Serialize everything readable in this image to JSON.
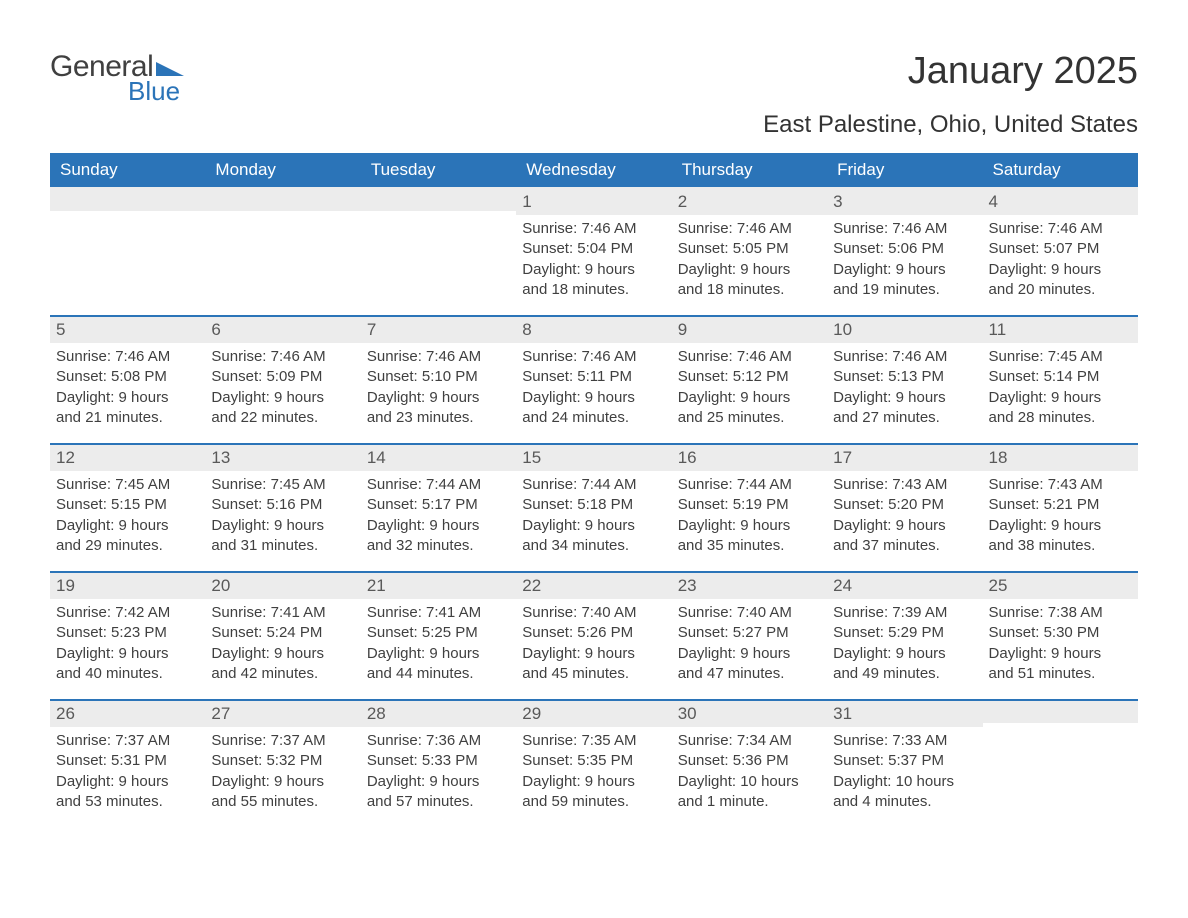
{
  "logo": {
    "word1": "General",
    "word2": "Blue",
    "brand_color": "#2b74b8"
  },
  "title": "January 2025",
  "location": "East Palestine, Ohio, United States",
  "days_of_week": [
    "Sunday",
    "Monday",
    "Tuesday",
    "Wednesday",
    "Thursday",
    "Friday",
    "Saturday"
  ],
  "colors": {
    "header_bg": "#2b74b8",
    "header_text": "#ffffff",
    "daynum_bg": "#ececec",
    "daynum_text": "#595959",
    "body_text": "#404040",
    "rule": "#2b74b8"
  },
  "typography": {
    "title_fontsize": 38,
    "location_fontsize": 24,
    "dow_fontsize": 17,
    "daynum_fontsize": 17,
    "body_fontsize": 15
  },
  "weeks": [
    [
      null,
      null,
      null,
      {
        "n": "1",
        "sunrise": "Sunrise: 7:46 AM",
        "sunset": "Sunset: 5:04 PM",
        "d1": "Daylight: 9 hours",
        "d2": "and 18 minutes."
      },
      {
        "n": "2",
        "sunrise": "Sunrise: 7:46 AM",
        "sunset": "Sunset: 5:05 PM",
        "d1": "Daylight: 9 hours",
        "d2": "and 18 minutes."
      },
      {
        "n": "3",
        "sunrise": "Sunrise: 7:46 AM",
        "sunset": "Sunset: 5:06 PM",
        "d1": "Daylight: 9 hours",
        "d2": "and 19 minutes."
      },
      {
        "n": "4",
        "sunrise": "Sunrise: 7:46 AM",
        "sunset": "Sunset: 5:07 PM",
        "d1": "Daylight: 9 hours",
        "d2": "and 20 minutes."
      }
    ],
    [
      {
        "n": "5",
        "sunrise": "Sunrise: 7:46 AM",
        "sunset": "Sunset: 5:08 PM",
        "d1": "Daylight: 9 hours",
        "d2": "and 21 minutes."
      },
      {
        "n": "6",
        "sunrise": "Sunrise: 7:46 AM",
        "sunset": "Sunset: 5:09 PM",
        "d1": "Daylight: 9 hours",
        "d2": "and 22 minutes."
      },
      {
        "n": "7",
        "sunrise": "Sunrise: 7:46 AM",
        "sunset": "Sunset: 5:10 PM",
        "d1": "Daylight: 9 hours",
        "d2": "and 23 minutes."
      },
      {
        "n": "8",
        "sunrise": "Sunrise: 7:46 AM",
        "sunset": "Sunset: 5:11 PM",
        "d1": "Daylight: 9 hours",
        "d2": "and 24 minutes."
      },
      {
        "n": "9",
        "sunrise": "Sunrise: 7:46 AM",
        "sunset": "Sunset: 5:12 PM",
        "d1": "Daylight: 9 hours",
        "d2": "and 25 minutes."
      },
      {
        "n": "10",
        "sunrise": "Sunrise: 7:46 AM",
        "sunset": "Sunset: 5:13 PM",
        "d1": "Daylight: 9 hours",
        "d2": "and 27 minutes."
      },
      {
        "n": "11",
        "sunrise": "Sunrise: 7:45 AM",
        "sunset": "Sunset: 5:14 PM",
        "d1": "Daylight: 9 hours",
        "d2": "and 28 minutes."
      }
    ],
    [
      {
        "n": "12",
        "sunrise": "Sunrise: 7:45 AM",
        "sunset": "Sunset: 5:15 PM",
        "d1": "Daylight: 9 hours",
        "d2": "and 29 minutes."
      },
      {
        "n": "13",
        "sunrise": "Sunrise: 7:45 AM",
        "sunset": "Sunset: 5:16 PM",
        "d1": "Daylight: 9 hours",
        "d2": "and 31 minutes."
      },
      {
        "n": "14",
        "sunrise": "Sunrise: 7:44 AM",
        "sunset": "Sunset: 5:17 PM",
        "d1": "Daylight: 9 hours",
        "d2": "and 32 minutes."
      },
      {
        "n": "15",
        "sunrise": "Sunrise: 7:44 AM",
        "sunset": "Sunset: 5:18 PM",
        "d1": "Daylight: 9 hours",
        "d2": "and 34 minutes."
      },
      {
        "n": "16",
        "sunrise": "Sunrise: 7:44 AM",
        "sunset": "Sunset: 5:19 PM",
        "d1": "Daylight: 9 hours",
        "d2": "and 35 minutes."
      },
      {
        "n": "17",
        "sunrise": "Sunrise: 7:43 AM",
        "sunset": "Sunset: 5:20 PM",
        "d1": "Daylight: 9 hours",
        "d2": "and 37 minutes."
      },
      {
        "n": "18",
        "sunrise": "Sunrise: 7:43 AM",
        "sunset": "Sunset: 5:21 PM",
        "d1": "Daylight: 9 hours",
        "d2": "and 38 minutes."
      }
    ],
    [
      {
        "n": "19",
        "sunrise": "Sunrise: 7:42 AM",
        "sunset": "Sunset: 5:23 PM",
        "d1": "Daylight: 9 hours",
        "d2": "and 40 minutes."
      },
      {
        "n": "20",
        "sunrise": "Sunrise: 7:41 AM",
        "sunset": "Sunset: 5:24 PM",
        "d1": "Daylight: 9 hours",
        "d2": "and 42 minutes."
      },
      {
        "n": "21",
        "sunrise": "Sunrise: 7:41 AM",
        "sunset": "Sunset: 5:25 PM",
        "d1": "Daylight: 9 hours",
        "d2": "and 44 minutes."
      },
      {
        "n": "22",
        "sunrise": "Sunrise: 7:40 AM",
        "sunset": "Sunset: 5:26 PM",
        "d1": "Daylight: 9 hours",
        "d2": "and 45 minutes."
      },
      {
        "n": "23",
        "sunrise": "Sunrise: 7:40 AM",
        "sunset": "Sunset: 5:27 PM",
        "d1": "Daylight: 9 hours",
        "d2": "and 47 minutes."
      },
      {
        "n": "24",
        "sunrise": "Sunrise: 7:39 AM",
        "sunset": "Sunset: 5:29 PM",
        "d1": "Daylight: 9 hours",
        "d2": "and 49 minutes."
      },
      {
        "n": "25",
        "sunrise": "Sunrise: 7:38 AM",
        "sunset": "Sunset: 5:30 PM",
        "d1": "Daylight: 9 hours",
        "d2": "and 51 minutes."
      }
    ],
    [
      {
        "n": "26",
        "sunrise": "Sunrise: 7:37 AM",
        "sunset": "Sunset: 5:31 PM",
        "d1": "Daylight: 9 hours",
        "d2": "and 53 minutes."
      },
      {
        "n": "27",
        "sunrise": "Sunrise: 7:37 AM",
        "sunset": "Sunset: 5:32 PM",
        "d1": "Daylight: 9 hours",
        "d2": "and 55 minutes."
      },
      {
        "n": "28",
        "sunrise": "Sunrise: 7:36 AM",
        "sunset": "Sunset: 5:33 PM",
        "d1": "Daylight: 9 hours",
        "d2": "and 57 minutes."
      },
      {
        "n": "29",
        "sunrise": "Sunrise: 7:35 AM",
        "sunset": "Sunset: 5:35 PM",
        "d1": "Daylight: 9 hours",
        "d2": "and 59 minutes."
      },
      {
        "n": "30",
        "sunrise": "Sunrise: 7:34 AM",
        "sunset": "Sunset: 5:36 PM",
        "d1": "Daylight: 10 hours",
        "d2": "and 1 minute."
      },
      {
        "n": "31",
        "sunrise": "Sunrise: 7:33 AM",
        "sunset": "Sunset: 5:37 PM",
        "d1": "Daylight: 10 hours",
        "d2": "and 4 minutes."
      },
      null
    ]
  ]
}
